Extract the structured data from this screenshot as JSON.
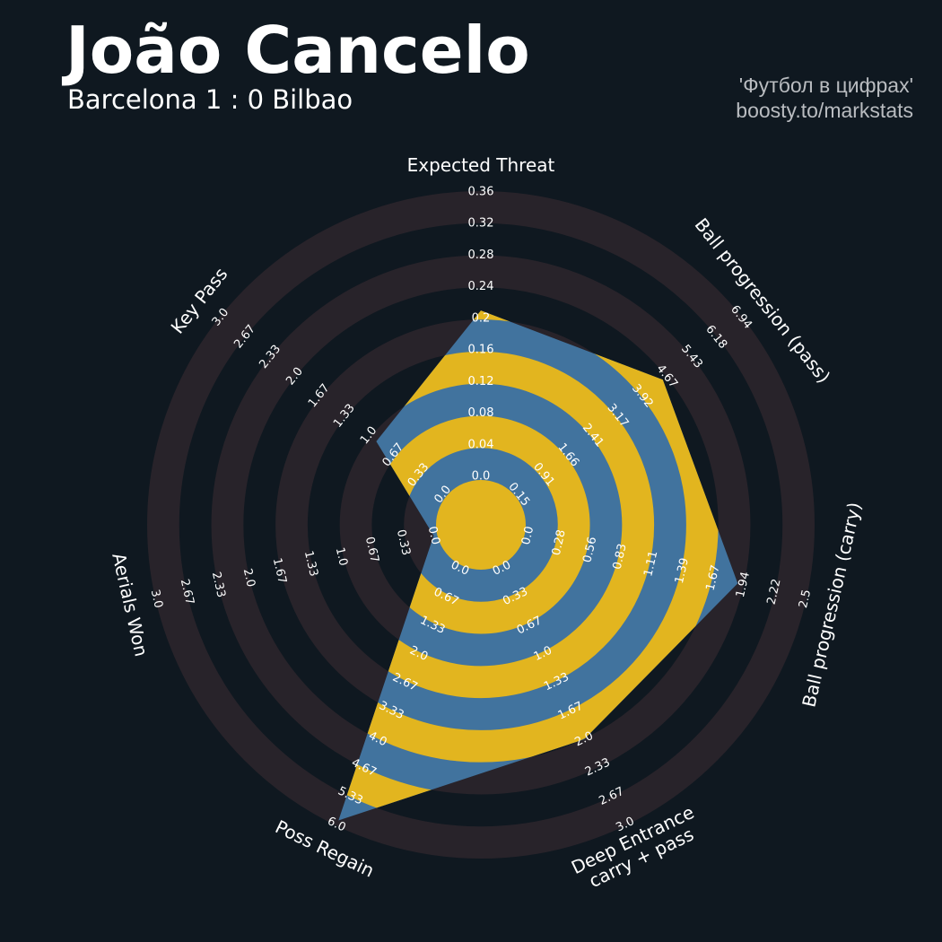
{
  "chart_data": {
    "type": "radar",
    "title": "João Cancelo",
    "subtitle": "Barcelona 1 : 0 Bilbao",
    "credits": [
      "'Футбол в цифрах'",
      "boosty.to/markstats"
    ],
    "categories": [
      "Expected Threat",
      "Ball progression (pass)",
      "Ball progression (carry)",
      "Deep Entrance\ncarry + pass",
      "Poss Regain",
      "Aerials Won",
      "Key Pass"
    ],
    "values": [
      0.21,
      4.55,
      1.89,
      2.0,
      5.9,
      0,
      0.9
    ],
    "rlims": [
      [
        0,
        0.36
      ],
      [
        0.15,
        6.94
      ],
      [
        0,
        2.5
      ],
      [
        0,
        3.0
      ],
      [
        0,
        6.0
      ],
      [
        0,
        3.0
      ],
      [
        0,
        3.0
      ]
    ],
    "rticks": [
      [
        {
          "value": 0,
          "label": "0.0"
        },
        0.04,
        0.08,
        0.12,
        0.16,
        0.2,
        0.24,
        0.28,
        0.32,
        0.36
      ],
      [
        0.15,
        0.91,
        1.66,
        2.41,
        3.17,
        3.92,
        4.67,
        5.43,
        6.18,
        6.94
      ],
      [
        {
          "value": 0,
          "label": "0.0"
        },
        0.28,
        0.56,
        0.83,
        1.11,
        1.39,
        1.67,
        1.94,
        2.22,
        2.5
      ],
      [
        {
          "value": 0,
          "label": "0.0"
        },
        0.33,
        0.67,
        {
          "value": 1,
          "label": "1.0"
        },
        1.33,
        1.67,
        {
          "value": 2,
          "label": "2.0"
        },
        2.33,
        2.67,
        {
          "value": 3,
          "label": "3.0"
        }
      ],
      [
        {
          "value": 0,
          "label": "0.0"
        },
        0.67,
        1.33,
        {
          "value": 2,
          "label": "2.0"
        },
        2.67,
        3.33,
        {
          "value": 4,
          "label": "4.0"
        },
        4.67,
        5.33,
        {
          "value": 6,
          "label": "6.0"
        }
      ],
      [
        {
          "value": 0,
          "label": "0.0"
        },
        0.33,
        0.67,
        {
          "value": 1,
          "label": "1.0"
        },
        1.33,
        1.67,
        {
          "value": 2,
          "label": "2.0"
        },
        2.33,
        2.67,
        {
          "value": 3,
          "label": "3.0"
        }
      ],
      [
        {
          "value": 0,
          "label": "0.0"
        },
        0.33,
        0.67,
        {
          "value": 1,
          "label": "1.0"
        },
        1.33,
        1.67,
        {
          "value": 2,
          "label": "2.0"
        },
        2.33,
        2.67,
        {
          "value": 3,
          "label": "3.0"
        }
      ]
    ],
    "colors": {
      "fill": "#41739e",
      "fill_rings": "#e2b51f",
      "rings": "#28232a",
      "background": "#0f1820"
    }
  }
}
